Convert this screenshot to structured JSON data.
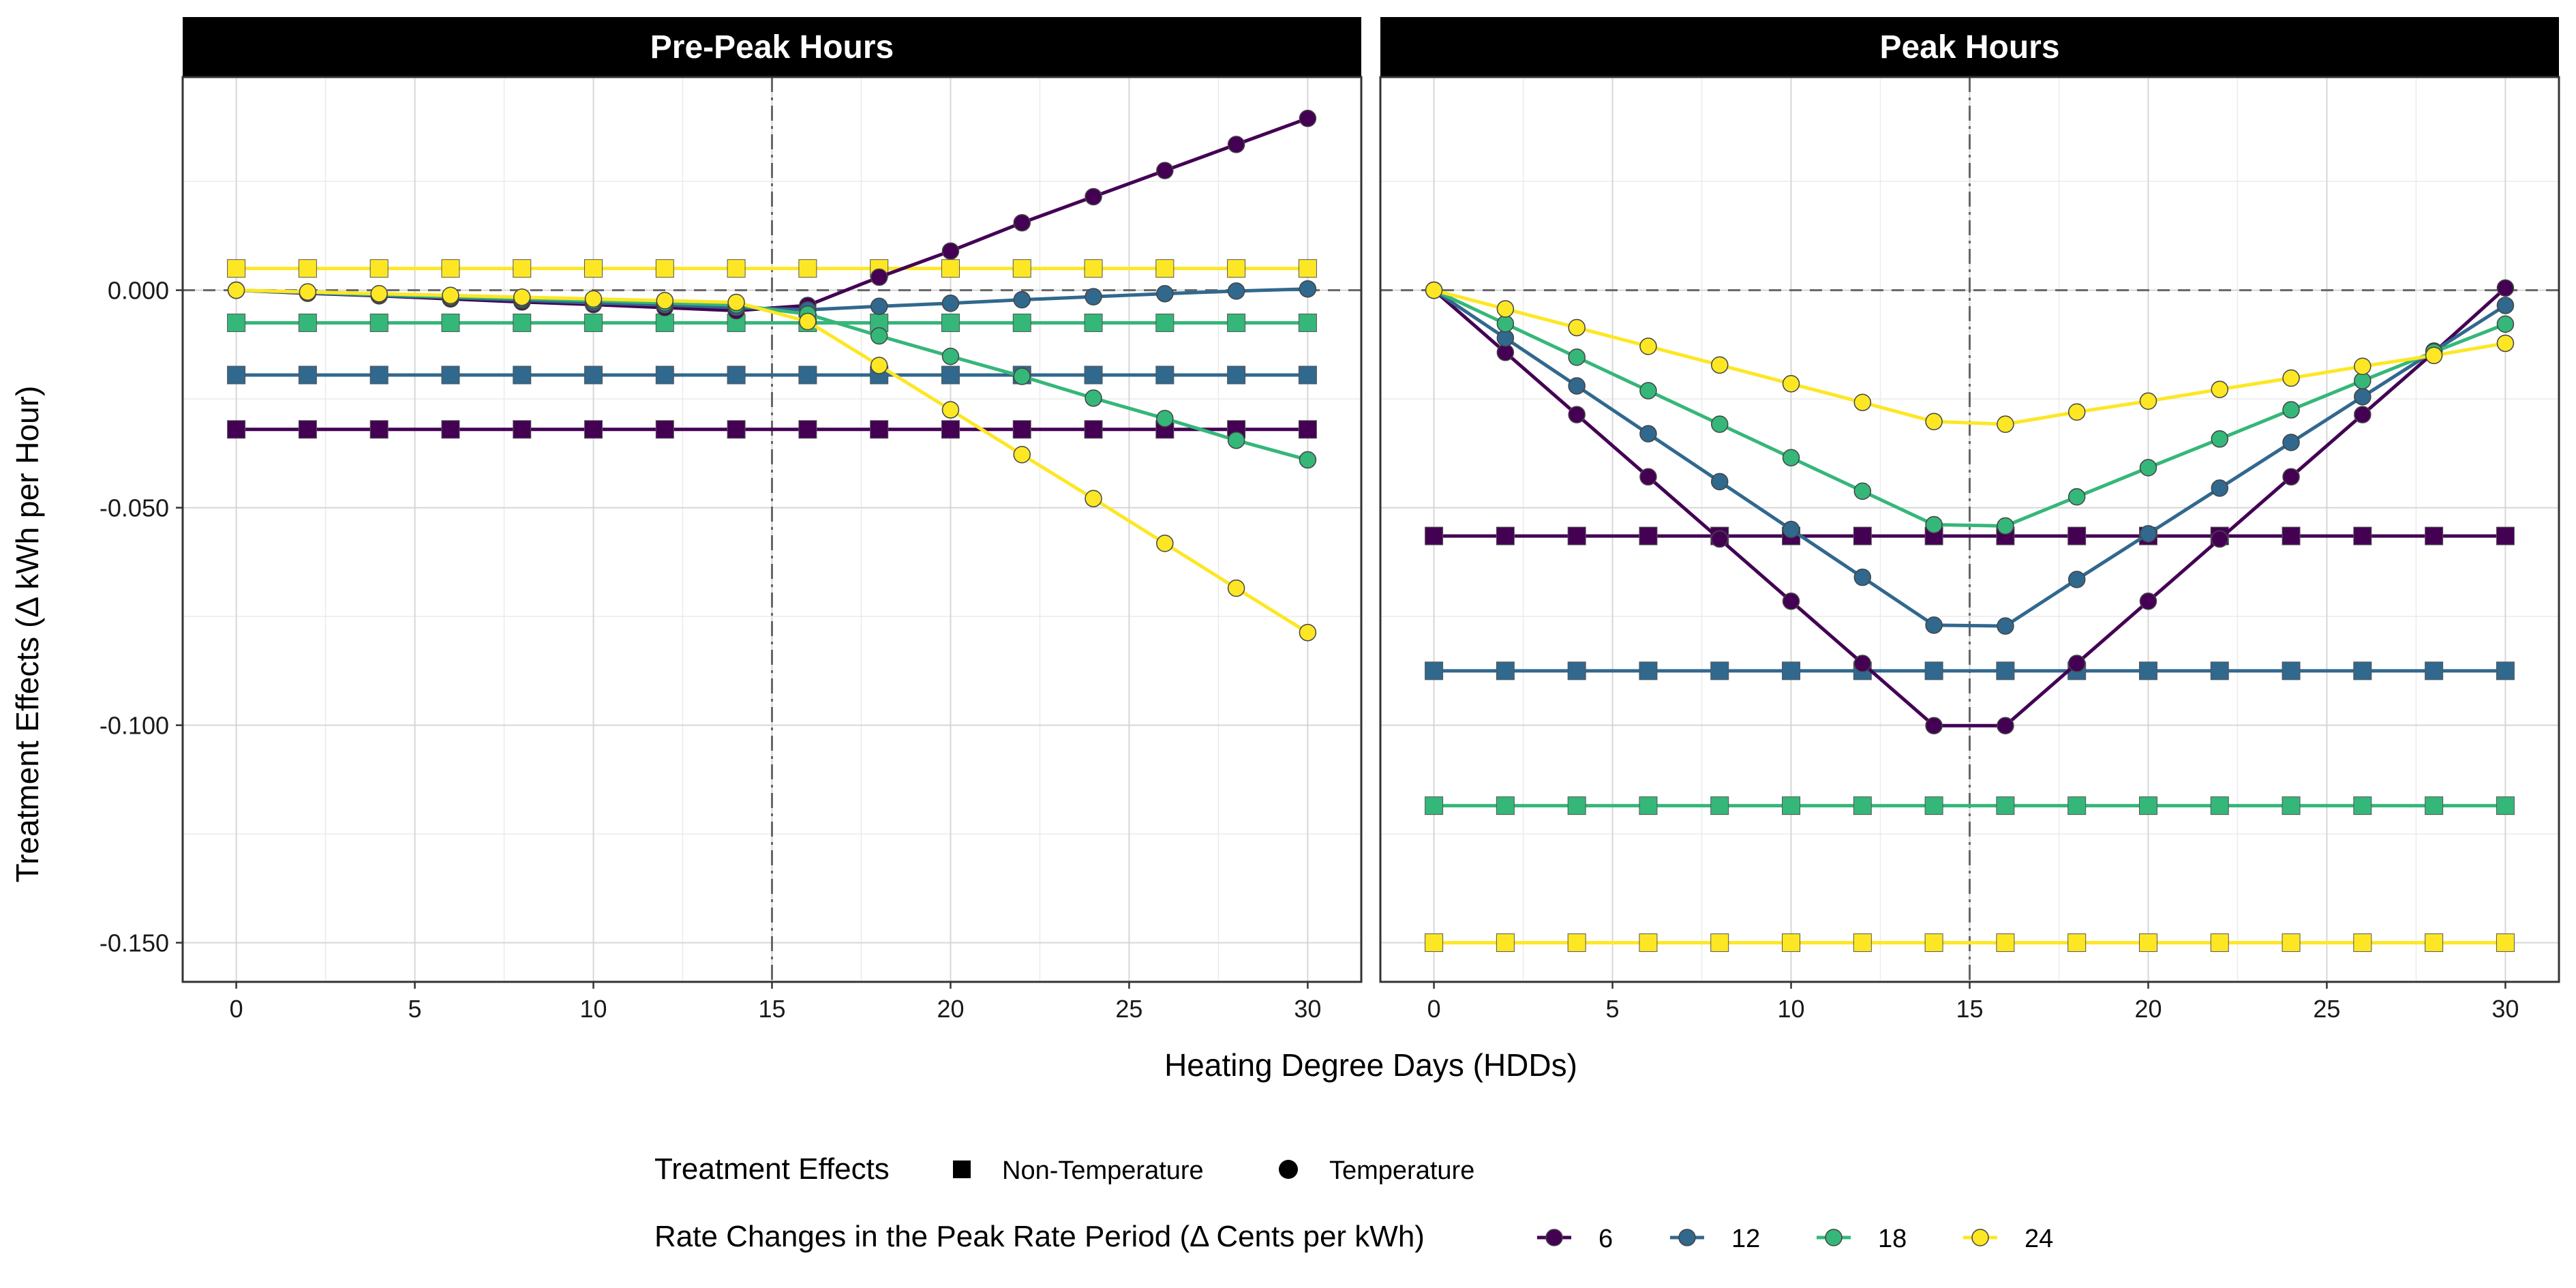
{
  "chart_data": {
    "type": "line",
    "xlabel": "Heating Degree Days  (HDDs)",
    "ylabel": "Treatment Effects  (Δ kWh per Hour)",
    "xlim": [
      -1.5,
      31.5
    ],
    "ylim": [
      -0.159,
      0.049
    ],
    "x_ticks": [
      0,
      5,
      10,
      15,
      20,
      25,
      30
    ],
    "x_tick_labels": [
      "0",
      "5",
      "10",
      "15",
      "20",
      "25",
      "30"
    ],
    "y_ticks": [
      0,
      -0.05,
      -0.1,
      -0.15
    ],
    "y_tick_labels": [
      "0.000",
      "-0.050",
      "-0.100",
      "-0.150"
    ],
    "grid": true,
    "reference_lines": {
      "horizontal_dashed_y": 0,
      "vertical_dashdot_x": 15
    },
    "colors": {
      "6": "#440154",
      "12": "#31688E",
      "18": "#35B779",
      "24": "#FDE725"
    },
    "x": [
      0,
      2,
      4,
      6,
      8,
      10,
      12,
      14,
      16,
      18,
      20,
      22,
      24,
      26,
      28,
      30
    ],
    "panels": [
      {
        "title": "Pre-Peak Hours",
        "non_temperature": [
          {
            "rate": "6",
            "value": -0.032
          },
          {
            "rate": "12",
            "value": -0.0195
          },
          {
            "rate": "18",
            "value": -0.0075
          },
          {
            "rate": "24",
            "value": 0.005
          }
        ],
        "temperature": [
          {
            "rate": "6",
            "values": [
              0.0,
              -0.0007,
              -0.0013,
              -0.002,
              -0.0027,
              -0.0033,
              -0.004,
              -0.0047,
              -0.0035,
              0.003,
              0.009,
              0.0155,
              0.0215,
              0.0275,
              0.0335,
              0.0395
            ]
          },
          {
            "rate": "12",
            "values": [
              0.0,
              -0.0006,
              -0.0012,
              -0.0017,
              -0.0023,
              -0.0029,
              -0.0034,
              -0.004,
              -0.0045,
              -0.0037,
              -0.003,
              -0.0022,
              -0.0015,
              -0.0008,
              -0.0002,
              0.0003
            ]
          },
          {
            "rate": "18",
            "values": [
              0.0,
              -0.0005,
              -0.001,
              -0.0015,
              -0.0019,
              -0.0024,
              -0.0029,
              -0.0034,
              -0.0055,
              -0.0105,
              -0.0152,
              -0.0198,
              -0.0248,
              -0.0295,
              -0.0345,
              -0.039
            ]
          },
          {
            "rate": "24",
            "values": [
              0.0,
              -0.0004,
              -0.0008,
              -0.0012,
              -0.0016,
              -0.002,
              -0.0024,
              -0.0028,
              -0.0072,
              -0.0173,
              -0.0275,
              -0.0378,
              -0.0479,
              -0.0582,
              -0.0685,
              -0.0787
            ]
          }
        ]
      },
      {
        "title": "Peak Hours",
        "non_temperature": [
          {
            "rate": "6",
            "value": -0.0565
          },
          {
            "rate": "12",
            "value": -0.0875
          },
          {
            "rate": "18",
            "value": -0.1185
          },
          {
            "rate": "24",
            "value": -0.15
          }
        ],
        "temperature": [
          {
            "rate": "6",
            "values": [
              0.0,
              -0.0143,
              -0.0286,
              -0.0429,
              -0.0572,
              -0.0715,
              -0.0858,
              -0.1001,
              -0.1001,
              -0.0858,
              -0.0715,
              -0.0572,
              -0.0429,
              -0.0286,
              -0.0143,
              0.0005
            ]
          },
          {
            "rate": "12",
            "values": [
              0.0,
              -0.011,
              -0.022,
              -0.033,
              -0.044,
              -0.055,
              -0.066,
              -0.077,
              -0.0772,
              -0.0665,
              -0.056,
              -0.0455,
              -0.035,
              -0.0245,
              -0.014,
              -0.0035
            ]
          },
          {
            "rate": "18",
            "values": [
              0.0,
              -0.0077,
              -0.0154,
              -0.0231,
              -0.0308,
              -0.0385,
              -0.0462,
              -0.0539,
              -0.0542,
              -0.0475,
              -0.0408,
              -0.0342,
              -0.0275,
              -0.0208,
              -0.0142,
              -0.0078
            ]
          },
          {
            "rate": "24",
            "values": [
              0.0,
              -0.0043,
              -0.0086,
              -0.0129,
              -0.0172,
              -0.0215,
              -0.0258,
              -0.0302,
              -0.0308,
              -0.028,
              -0.0255,
              -0.0228,
              -0.0202,
              -0.0175,
              -0.015,
              -0.0122
            ]
          }
        ]
      }
    ],
    "legend": {
      "placement": "bottom",
      "shape_title": "Treatment Effects",
      "shape_items": [
        "Non-Temperature",
        "Temperature"
      ],
      "color_title": "Rate Changes in the Peak Rate Period  (Δ Cents per kWh)",
      "color_items": [
        "6",
        "12",
        "18",
        "24"
      ]
    }
  }
}
